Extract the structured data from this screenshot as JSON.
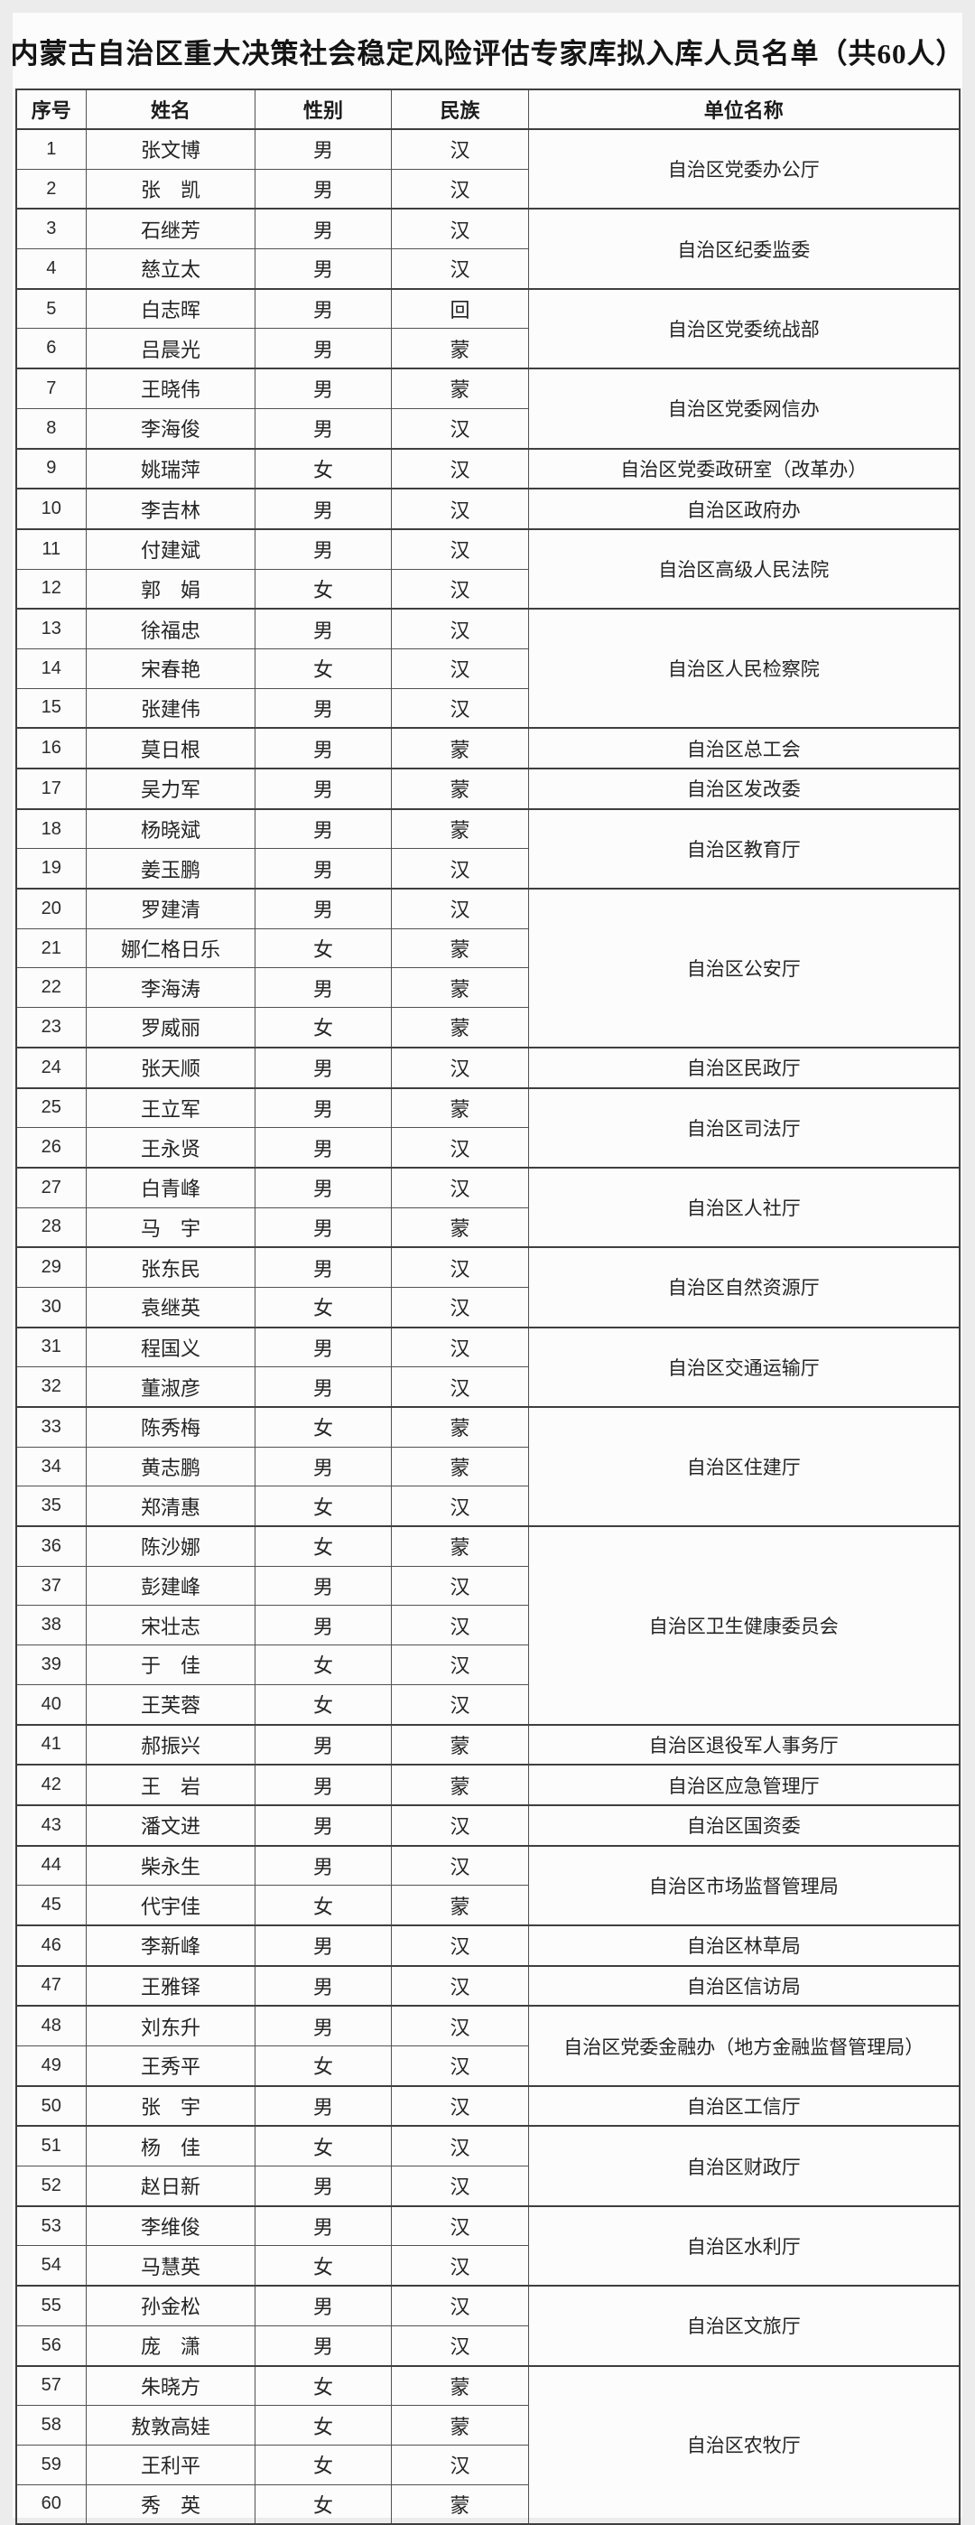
{
  "page": {
    "title": "内蒙古自治区重大决策社会稳定风险评估专家库拟入库人员名单（共60人）"
  },
  "colors": {
    "page_background": "#ececec",
    "card_background": "#fcfcfc",
    "border": "#3f3f3f",
    "text": "#242424"
  },
  "table": {
    "headers": [
      "序号",
      "姓名",
      "性别",
      "民族",
      "单位名称"
    ],
    "groups": [
      {
        "unit": "自治区党委办公厅",
        "members": [
          {
            "no": 1,
            "name": "张文博",
            "gender": "男",
            "ethnicity": "汉"
          },
          {
            "no": 2,
            "name": "张　凯",
            "gender": "男",
            "ethnicity": "汉"
          }
        ]
      },
      {
        "unit": "自治区纪委监委",
        "members": [
          {
            "no": 3,
            "name": "石继芳",
            "gender": "男",
            "ethnicity": "汉"
          },
          {
            "no": 4,
            "name": "慈立太",
            "gender": "男",
            "ethnicity": "汉"
          }
        ]
      },
      {
        "unit": "自治区党委统战部",
        "members": [
          {
            "no": 5,
            "name": "白志晖",
            "gender": "男",
            "ethnicity": "回"
          },
          {
            "no": 6,
            "name": "吕晨光",
            "gender": "男",
            "ethnicity": "蒙"
          }
        ]
      },
      {
        "unit": "自治区党委网信办",
        "members": [
          {
            "no": 7,
            "name": "王晓伟",
            "gender": "男",
            "ethnicity": "蒙"
          },
          {
            "no": 8,
            "name": "李海俊",
            "gender": "男",
            "ethnicity": "汉"
          }
        ]
      },
      {
        "unit": "自治区党委政研室（改革办）",
        "members": [
          {
            "no": 9,
            "name": "姚瑞萍",
            "gender": "女",
            "ethnicity": "汉"
          }
        ]
      },
      {
        "unit": "自治区政府办",
        "members": [
          {
            "no": 10,
            "name": "李吉林",
            "gender": "男",
            "ethnicity": "汉"
          }
        ]
      },
      {
        "unit": "自治区高级人民法院",
        "members": [
          {
            "no": 11,
            "name": "付建斌",
            "gender": "男",
            "ethnicity": "汉"
          },
          {
            "no": 12,
            "name": "郭　娟",
            "gender": "女",
            "ethnicity": "汉"
          }
        ]
      },
      {
        "unit": "自治区人民检察院",
        "members": [
          {
            "no": 13,
            "name": "徐福忠",
            "gender": "男",
            "ethnicity": "汉"
          },
          {
            "no": 14,
            "name": "宋春艳",
            "gender": "女",
            "ethnicity": "汉"
          },
          {
            "no": 15,
            "name": "张建伟",
            "gender": "男",
            "ethnicity": "汉"
          }
        ]
      },
      {
        "unit": "自治区总工会",
        "members": [
          {
            "no": 16,
            "name": "莫日根",
            "gender": "男",
            "ethnicity": "蒙"
          }
        ]
      },
      {
        "unit": "自治区发改委",
        "members": [
          {
            "no": 17,
            "name": "吴力军",
            "gender": "男",
            "ethnicity": "蒙"
          }
        ]
      },
      {
        "unit": "自治区教育厅",
        "members": [
          {
            "no": 18,
            "name": "杨晓斌",
            "gender": "男",
            "ethnicity": "蒙"
          },
          {
            "no": 19,
            "name": "姜玉鹏",
            "gender": "男",
            "ethnicity": "汉"
          }
        ]
      },
      {
        "unit": "自治区公安厅",
        "members": [
          {
            "no": 20,
            "name": "罗建清",
            "gender": "男",
            "ethnicity": "汉"
          },
          {
            "no": 21,
            "name": "娜仁格日乐",
            "gender": "女",
            "ethnicity": "蒙"
          },
          {
            "no": 22,
            "name": "李海涛",
            "gender": "男",
            "ethnicity": "蒙"
          },
          {
            "no": 23,
            "name": "罗威丽",
            "gender": "女",
            "ethnicity": "蒙"
          }
        ]
      },
      {
        "unit": "自治区民政厅",
        "members": [
          {
            "no": 24,
            "name": "张天顺",
            "gender": "男",
            "ethnicity": "汉"
          }
        ]
      },
      {
        "unit": "自治区司法厅",
        "members": [
          {
            "no": 25,
            "name": "王立军",
            "gender": "男",
            "ethnicity": "蒙"
          },
          {
            "no": 26,
            "name": "王永贤",
            "gender": "男",
            "ethnicity": "汉"
          }
        ]
      },
      {
        "unit": "自治区人社厅",
        "members": [
          {
            "no": 27,
            "name": "白青峰",
            "gender": "男",
            "ethnicity": "汉"
          },
          {
            "no": 28,
            "name": "马　宇",
            "gender": "男",
            "ethnicity": "蒙"
          }
        ]
      },
      {
        "unit": "自治区自然资源厅",
        "members": [
          {
            "no": 29,
            "name": "张东民",
            "gender": "男",
            "ethnicity": "汉"
          },
          {
            "no": 30,
            "name": "袁继英",
            "gender": "女",
            "ethnicity": "汉"
          }
        ]
      },
      {
        "unit": "自治区交通运输厅",
        "members": [
          {
            "no": 31,
            "name": "程国义",
            "gender": "男",
            "ethnicity": "汉"
          },
          {
            "no": 32,
            "name": "董淑彦",
            "gender": "男",
            "ethnicity": "汉"
          }
        ]
      },
      {
        "unit": "自治区住建厅",
        "members": [
          {
            "no": 33,
            "name": "陈秀梅",
            "gender": "女",
            "ethnicity": "蒙"
          },
          {
            "no": 34,
            "name": "黄志鹏",
            "gender": "男",
            "ethnicity": "蒙"
          },
          {
            "no": 35,
            "name": "郑清惠",
            "gender": "女",
            "ethnicity": "汉"
          }
        ]
      },
      {
        "unit": "自治区卫生健康委员会",
        "members": [
          {
            "no": 36,
            "name": "陈沙娜",
            "gender": "女",
            "ethnicity": "蒙"
          },
          {
            "no": 37,
            "name": "彭建峰",
            "gender": "男",
            "ethnicity": "汉"
          },
          {
            "no": 38,
            "name": "宋壮志",
            "gender": "男",
            "ethnicity": "汉"
          },
          {
            "no": 39,
            "name": "于　佳",
            "gender": "女",
            "ethnicity": "汉"
          },
          {
            "no": 40,
            "name": "王芙蓉",
            "gender": "女",
            "ethnicity": "汉"
          }
        ]
      },
      {
        "unit": "自治区退役军人事务厅",
        "members": [
          {
            "no": 41,
            "name": "郝振兴",
            "gender": "男",
            "ethnicity": "蒙"
          }
        ]
      },
      {
        "unit": "自治区应急管理厅",
        "members": [
          {
            "no": 42,
            "name": "王　岩",
            "gender": "男",
            "ethnicity": "蒙"
          }
        ]
      },
      {
        "unit": "自治区国资委",
        "members": [
          {
            "no": 43,
            "name": "潘文进",
            "gender": "男",
            "ethnicity": "汉"
          }
        ]
      },
      {
        "unit": "自治区市场监督管理局",
        "members": [
          {
            "no": 44,
            "name": "柴永生",
            "gender": "男",
            "ethnicity": "汉"
          },
          {
            "no": 45,
            "name": "代宇佳",
            "gender": "女",
            "ethnicity": "蒙"
          }
        ]
      },
      {
        "unit": "自治区林草局",
        "members": [
          {
            "no": 46,
            "name": "李新峰",
            "gender": "男",
            "ethnicity": "汉"
          }
        ]
      },
      {
        "unit": "自治区信访局",
        "members": [
          {
            "no": 47,
            "name": "王雅铎",
            "gender": "男",
            "ethnicity": "汉"
          }
        ]
      },
      {
        "unit": "自治区党委金融办（地方金融监督管理局）",
        "members": [
          {
            "no": 48,
            "name": "刘东升",
            "gender": "男",
            "ethnicity": "汉"
          },
          {
            "no": 49,
            "name": "王秀平",
            "gender": "女",
            "ethnicity": "汉"
          }
        ]
      },
      {
        "unit": "自治区工信厅",
        "members": [
          {
            "no": 50,
            "name": "张　宇",
            "gender": "男",
            "ethnicity": "汉"
          }
        ]
      },
      {
        "unit": "自治区财政厅",
        "members": [
          {
            "no": 51,
            "name": "杨　佳",
            "gender": "女",
            "ethnicity": "汉"
          },
          {
            "no": 52,
            "name": "赵日新",
            "gender": "男",
            "ethnicity": "汉"
          }
        ]
      },
      {
        "unit": "自治区水利厅",
        "members": [
          {
            "no": 53,
            "name": "李维俊",
            "gender": "男",
            "ethnicity": "汉"
          },
          {
            "no": 54,
            "name": "马慧英",
            "gender": "女",
            "ethnicity": "汉"
          }
        ]
      },
      {
        "unit": "自治区文旅厅",
        "members": [
          {
            "no": 55,
            "name": "孙金松",
            "gender": "男",
            "ethnicity": "汉"
          },
          {
            "no": 56,
            "name": "庞　潇",
            "gender": "男",
            "ethnicity": "汉"
          }
        ]
      },
      {
        "unit": "自治区农牧厅",
        "members": [
          {
            "no": 57,
            "name": "朱晓方",
            "gender": "女",
            "ethnicity": "蒙"
          },
          {
            "no": 58,
            "name": "敖敦高娃",
            "gender": "女",
            "ethnicity": "蒙"
          },
          {
            "no": 59,
            "name": "王利平",
            "gender": "女",
            "ethnicity": "汉"
          },
          {
            "no": 60,
            "name": "秀　英",
            "gender": "女",
            "ethnicity": "蒙"
          }
        ]
      }
    ]
  }
}
